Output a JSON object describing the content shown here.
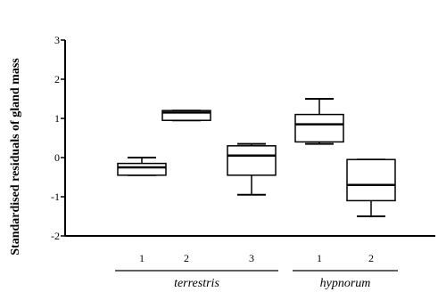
{
  "chart_data": {
    "type": "box",
    "ylabel": "Standardised residuals of gland mass",
    "ylim": [
      -2,
      3
    ],
    "yticks": [
      -2,
      -1,
      0,
      1,
      2,
      3
    ],
    "ytick_labels": [
      "-2",
      "-1",
      "0",
      "1",
      "2",
      "3"
    ],
    "categories": [
      "1",
      "2",
      "3",
      "1",
      "2"
    ],
    "groups": [
      {
        "label": "terrestris",
        "members": [
          0,
          1,
          2
        ]
      },
      {
        "label": "hypnorum",
        "members": [
          3,
          4
        ]
      }
    ],
    "boxes": [
      {
        "category": "1",
        "whisker_low": -0.45,
        "q1": -0.45,
        "median": -0.25,
        "q3": -0.15,
        "whisker_high": 0.0
      },
      {
        "category": "2",
        "whisker_low": 0.95,
        "q1": 0.95,
        "median": 1.15,
        "q3": 1.2,
        "whisker_high": 1.2
      },
      {
        "category": "3",
        "whisker_low": -0.95,
        "q1": -0.45,
        "median": 0.05,
        "q3": 0.3,
        "whisker_high": 0.35
      },
      {
        "category": "1",
        "whisker_low": 0.35,
        "q1": 0.4,
        "median": 0.85,
        "q3": 1.1,
        "whisker_high": 1.5
      },
      {
        "category": "2",
        "whisker_low": -1.5,
        "q1": -1.1,
        "median": -0.7,
        "q3": -0.05,
        "whisker_high": -0.05
      }
    ]
  }
}
